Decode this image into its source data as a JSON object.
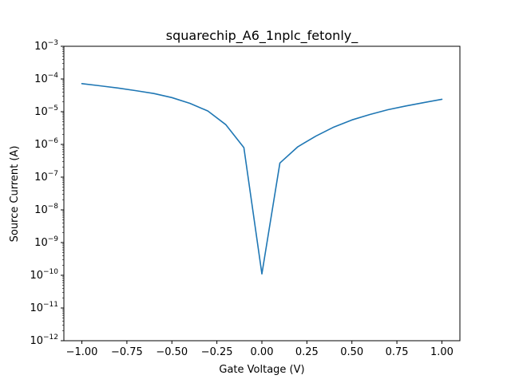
{
  "chart_data": {
    "type": "line",
    "title": "squarechip_A6_1nplc_fetonly_",
    "xlabel": "Gate Voltage (V)",
    "ylabel": "Source Current (A)",
    "xlim": [
      -1.1,
      1.1
    ],
    "ylim": [
      1e-12,
      0.001
    ],
    "yscale": "log",
    "grid": false,
    "xticks": [
      -1.0,
      -0.75,
      -0.5,
      -0.25,
      0.0,
      0.25,
      0.5,
      0.75,
      1.0
    ],
    "xtick_labels": [
      "−1.00",
      "−0.75",
      "−0.50",
      "−0.25",
      "0.00",
      "0.25",
      "0.50",
      "0.75",
      "1.00"
    ],
    "yticks": [
      -12,
      -11,
      -10,
      -9,
      -8,
      -7,
      -6,
      -5,
      -4,
      -3
    ],
    "ytick_base": "10",
    "ytick_exponents": [
      "−12",
      "−11",
      "−10",
      "−9",
      "−8",
      "−7",
      "−6",
      "−5",
      "−4",
      "−3"
    ],
    "series": [
      {
        "color": "#1f77b4",
        "x": [
          -1.0,
          -0.9,
          -0.8,
          -0.7,
          -0.6,
          -0.5,
          -0.4,
          -0.3,
          -0.2,
          -0.1,
          0.0,
          0.1,
          0.2,
          0.3,
          0.4,
          0.5,
          0.6,
          0.7,
          0.8,
          0.9,
          1.0
        ],
        "y": [
          7.2e-05,
          6.2e-05,
          5.3e-05,
          4.4e-05,
          3.6e-05,
          2.7e-05,
          1.8e-05,
          1.05e-05,
          4e-06,
          8e-07,
          1.1e-10,
          2.7e-07,
          8.5e-07,
          1.8e-06,
          3.4e-06,
          5.6e-06,
          8.2e-06,
          1.15e-05,
          1.5e-05,
          1.9e-05,
          2.4e-05
        ]
      }
    ]
  }
}
